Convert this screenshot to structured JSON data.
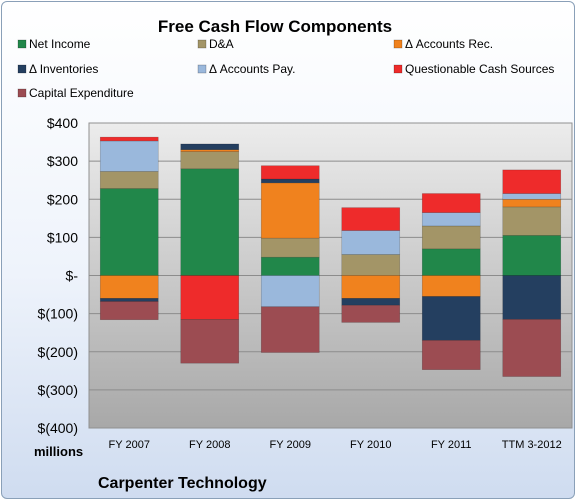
{
  "chart_data": {
    "type": "bar",
    "stacked": true,
    "title": "Free Cash Flow Components",
    "ylabel": "millions",
    "company": "Carpenter Technology",
    "categories": [
      "FY 2007",
      "FY 2008",
      "FY 2009",
      "FY 2010",
      "FY 2011",
      "TTM 3-2012"
    ],
    "ylim": [
      -400,
      400
    ],
    "yticks": [
      400,
      300,
      200,
      100,
      0,
      -100,
      -200,
      -300,
      -400
    ],
    "ytick_labels": [
      "$400",
      "$300",
      "$200",
      "$100",
      "$-",
      "$(100)",
      "$(200)",
      "$(300)",
      "$(400)"
    ],
    "legend_placement": "top",
    "grid": true,
    "series": [
      {
        "name": "Net Income",
        "color": "#21874a",
        "values": [
          228,
          280,
          48,
          0,
          70,
          105
        ]
      },
      {
        "name": "D&A",
        "color": "#a39567",
        "values": [
          45,
          45,
          50,
          55,
          60,
          75
        ]
      },
      {
        "name": "Δ Accounts Rec.",
        "color": "#f0821e",
        "values": [
          -60,
          5,
          145,
          -60,
          -55,
          20
        ]
      },
      {
        "name": "Δ Inventories",
        "color": "#243f60",
        "values": [
          -8,
          15,
          10,
          -18,
          -115,
          -115
        ]
      },
      {
        "name": "Δ Accounts Pay.",
        "color": "#9ab8dc",
        "values": [
          80,
          0,
          -82,
          63,
          35,
          15
        ]
      },
      {
        "name": "Questionable Cash Sources",
        "color": "#ee2b2b",
        "values": [
          10,
          -115,
          35,
          60,
          50,
          62
        ]
      },
      {
        "name": "Capital Expenditure",
        "color": "#9c4c52",
        "values": [
          -48,
          -115,
          -120,
          -45,
          -77,
          -150
        ]
      }
    ]
  }
}
